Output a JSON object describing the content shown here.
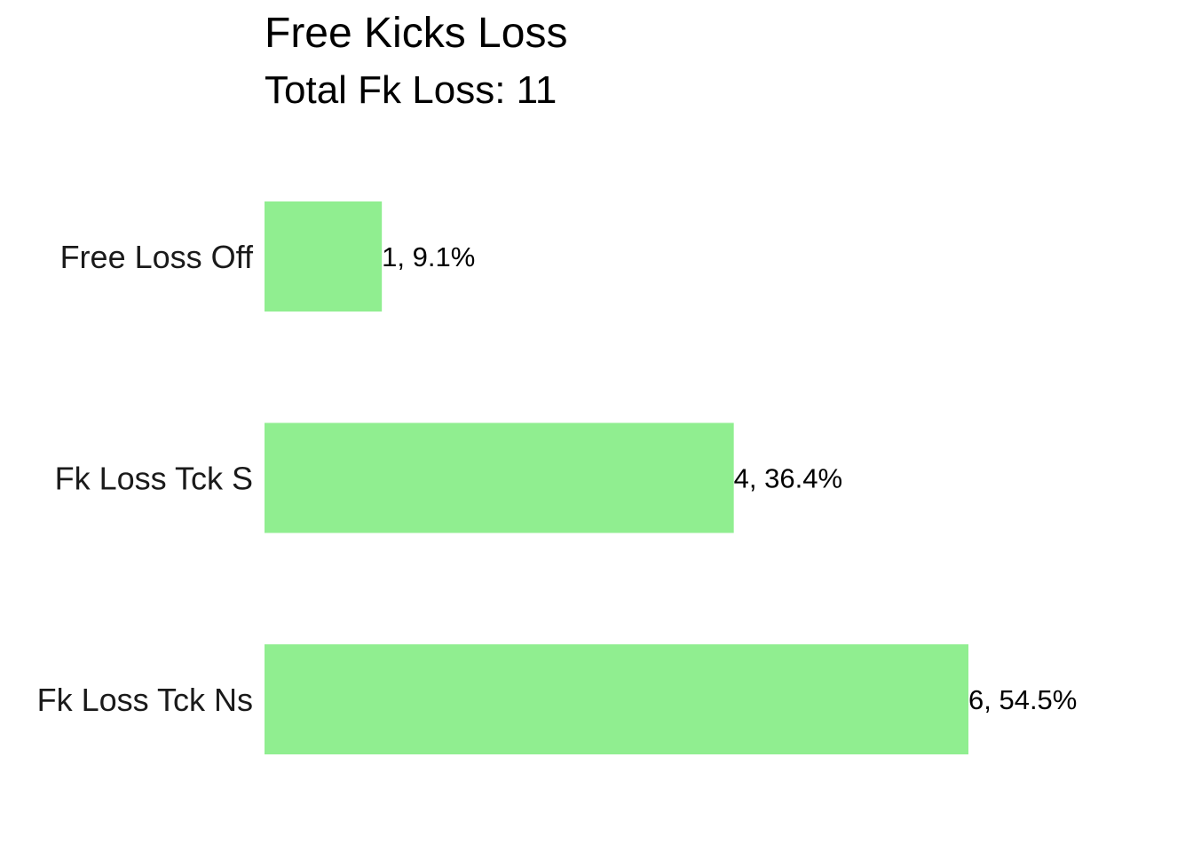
{
  "chart_data": {
    "type": "bar",
    "orientation": "horizontal",
    "title": "Free Kicks Loss",
    "subtitle": "Total Fk Loss: 11",
    "categories": [
      "Free Loss Off",
      "Fk Loss Tck S",
      "Fk Loss Tck Ns"
    ],
    "values": [
      1,
      4,
      6
    ],
    "data_labels": [
      "1, 9.1%",
      "4, 36.4%",
      "6, 54.5%"
    ],
    "xlabel": "",
    "ylabel": "",
    "xlim": [
      0,
      6
    ],
    "grid": false,
    "legend": "none",
    "bar_color": "#90EE90"
  }
}
